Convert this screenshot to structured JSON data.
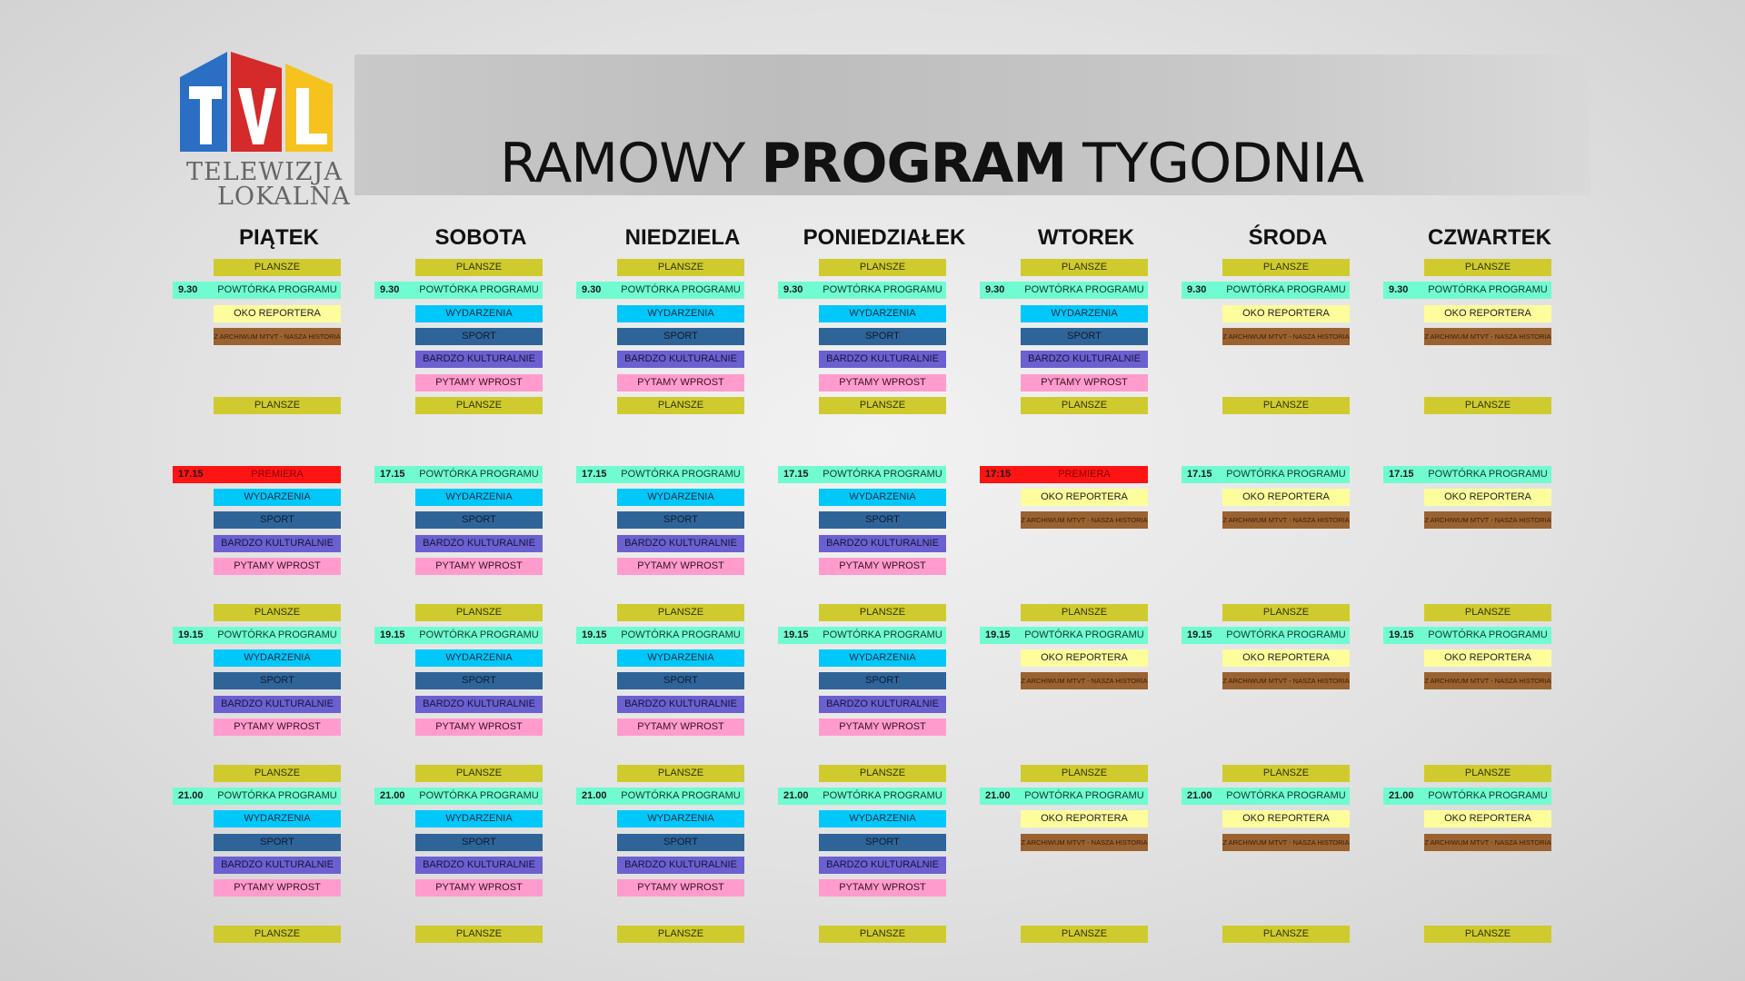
{
  "header": {
    "title_pre": "RAMOWY",
    "title_bold": "PROGRAM",
    "title_post": "TYGODNIA"
  },
  "logo": {
    "letters": "TVL",
    "line1": "TELEWIZJA",
    "line2": "LOKALNA",
    "colors": [
      "#2a6fc4",
      "#d42a2a",
      "#f6c21e"
    ]
  },
  "programs": {
    "plansze": {
      "label": "PLANSZE",
      "color": "#cfcb2e",
      "text": "#333300"
    },
    "powtorka": {
      "label": "POWTÓRKA  PROGRAMU",
      "color": "#70fbd0",
      "text": "#103a30"
    },
    "premiera": {
      "label": "PREMIERA",
      "color": "#ff1414",
      "text": "#8a0000"
    },
    "oko": {
      "label": "OKO REPORTERA",
      "color": "#fdfd9c",
      "text": "#222"
    },
    "archiwum": {
      "label": "Z ARCHIWUM MTVT - NASZA HISTORIA",
      "color": "#9a6230",
      "text": "#3a1e08",
      "small": true
    },
    "wydarzenia": {
      "label": "WYDARZENIA",
      "color": "#00c8fb",
      "text": "#0a2a40"
    },
    "sport": {
      "label": "SPORT",
      "color": "#2f6499",
      "text": "#0c1c30"
    },
    "kultura": {
      "label": "BARDZO KULTURALNIE",
      "color": "#6b60d0",
      "text": "#16143a"
    },
    "pytamy": {
      "label": "PYTAMY WPROST",
      "color": "#ff9ccd",
      "text": "#3a1020"
    }
  },
  "days": [
    {
      "name": "PIĄTEK",
      "slots": [
        {
          "p": "plansze"
        },
        {
          "t": "9.30",
          "p": "powtorka"
        },
        {
          "p": "oko"
        },
        {
          "p": "archiwum"
        },
        null,
        null,
        {
          "p": "plansze"
        },
        null,
        null,
        {
          "t": "17.15",
          "p": "premiera"
        },
        {
          "p": "wydarzenia"
        },
        {
          "p": "sport"
        },
        {
          "p": "kultura"
        },
        {
          "p": "pytamy"
        },
        null,
        {
          "p": "plansze"
        },
        {
          "t": "19.15",
          "p": "powtorka"
        },
        {
          "p": "wydarzenia"
        },
        {
          "p": "sport"
        },
        {
          "p": "kultura"
        },
        {
          "p": "pytamy"
        },
        null,
        {
          "p": "plansze"
        },
        {
          "t": "21.00",
          "p": "powtorka"
        },
        {
          "p": "wydarzenia"
        },
        {
          "p": "sport"
        },
        {
          "p": "kultura"
        },
        {
          "p": "pytamy"
        },
        null,
        {
          "p": "plansze"
        }
      ]
    },
    {
      "name": "SOBOTA",
      "slots": [
        {
          "p": "plansze"
        },
        {
          "t": "9.30",
          "p": "powtorka"
        },
        {
          "p": "wydarzenia"
        },
        {
          "p": "sport"
        },
        {
          "p": "kultura"
        },
        {
          "p": "pytamy"
        },
        {
          "p": "plansze"
        },
        null,
        null,
        {
          "t": "17.15",
          "p": "powtorka"
        },
        {
          "p": "wydarzenia"
        },
        {
          "p": "sport"
        },
        {
          "p": "kultura"
        },
        {
          "p": "pytamy"
        },
        null,
        {
          "p": "plansze"
        },
        {
          "t": "19.15",
          "p": "powtorka"
        },
        {
          "p": "wydarzenia"
        },
        {
          "p": "sport"
        },
        {
          "p": "kultura"
        },
        {
          "p": "pytamy"
        },
        null,
        {
          "p": "plansze"
        },
        {
          "t": "21.00",
          "p": "powtorka"
        },
        {
          "p": "wydarzenia"
        },
        {
          "p": "sport"
        },
        {
          "p": "kultura"
        },
        {
          "p": "pytamy"
        },
        null,
        {
          "p": "plansze"
        }
      ]
    },
    {
      "name": "NIEDZIELA",
      "slots": [
        {
          "p": "plansze"
        },
        {
          "t": "9.30",
          "p": "powtorka"
        },
        {
          "p": "wydarzenia"
        },
        {
          "p": "sport"
        },
        {
          "p": "kultura"
        },
        {
          "p": "pytamy"
        },
        {
          "p": "plansze"
        },
        null,
        null,
        {
          "t": "17.15",
          "p": "powtorka"
        },
        {
          "p": "wydarzenia"
        },
        {
          "p": "sport"
        },
        {
          "p": "kultura"
        },
        {
          "p": "pytamy"
        },
        null,
        {
          "p": "plansze"
        },
        {
          "t": "19.15",
          "p": "powtorka"
        },
        {
          "p": "wydarzenia"
        },
        {
          "p": "sport"
        },
        {
          "p": "kultura"
        },
        {
          "p": "pytamy"
        },
        null,
        {
          "p": "plansze"
        },
        {
          "t": "21.00",
          "p": "powtorka"
        },
        {
          "p": "wydarzenia"
        },
        {
          "p": "sport"
        },
        {
          "p": "kultura"
        },
        {
          "p": "pytamy"
        },
        null,
        {
          "p": "plansze"
        }
      ]
    },
    {
      "name": "PONIEDZIAŁEK",
      "slots": [
        {
          "p": "plansze"
        },
        {
          "t": "9.30",
          "p": "powtorka"
        },
        {
          "p": "wydarzenia"
        },
        {
          "p": "sport"
        },
        {
          "p": "kultura"
        },
        {
          "p": "pytamy"
        },
        {
          "p": "plansze"
        },
        null,
        null,
        {
          "t": "17.15",
          "p": "powtorka"
        },
        {
          "p": "wydarzenia"
        },
        {
          "p": "sport"
        },
        {
          "p": "kultura"
        },
        {
          "p": "pytamy"
        },
        null,
        {
          "p": "plansze"
        },
        {
          "t": "19.15",
          "p": "powtorka"
        },
        {
          "p": "wydarzenia"
        },
        {
          "p": "sport"
        },
        {
          "p": "kultura"
        },
        {
          "p": "pytamy"
        },
        null,
        {
          "p": "plansze"
        },
        {
          "t": "21.00",
          "p": "powtorka"
        },
        {
          "p": "wydarzenia"
        },
        {
          "p": "sport"
        },
        {
          "p": "kultura"
        },
        {
          "p": "pytamy"
        },
        null,
        {
          "p": "plansze"
        }
      ]
    },
    {
      "name": "WTOREK",
      "slots": [
        {
          "p": "plansze"
        },
        {
          "t": "9.30",
          "p": "powtorka"
        },
        {
          "p": "wydarzenia"
        },
        {
          "p": "sport"
        },
        {
          "p": "kultura"
        },
        {
          "p": "pytamy"
        },
        {
          "p": "plansze"
        },
        null,
        null,
        {
          "t": "17:15",
          "p": "premiera"
        },
        {
          "p": "oko"
        },
        {
          "p": "archiwum"
        },
        null,
        null,
        null,
        {
          "p": "plansze"
        },
        {
          "t": "19.15",
          "p": "powtorka"
        },
        {
          "p": "oko"
        },
        {
          "p": "archiwum"
        },
        null,
        null,
        null,
        {
          "p": "plansze"
        },
        {
          "t": "21.00",
          "p": "powtorka"
        },
        {
          "p": "oko"
        },
        {
          "p": "archiwum"
        },
        null,
        null,
        null,
        {
          "p": "plansze"
        }
      ]
    },
    {
      "name": "ŚRODA",
      "slots": [
        {
          "p": "plansze"
        },
        {
          "t": "9.30",
          "p": "powtorka"
        },
        {
          "p": "oko"
        },
        {
          "p": "archiwum"
        },
        null,
        null,
        {
          "p": "plansze"
        },
        null,
        null,
        {
          "t": "17.15",
          "p": "powtorka"
        },
        {
          "p": "oko"
        },
        {
          "p": "archiwum"
        },
        null,
        null,
        null,
        {
          "p": "plansze"
        },
        {
          "t": "19.15",
          "p": "powtorka"
        },
        {
          "p": "oko"
        },
        {
          "p": "archiwum"
        },
        null,
        null,
        null,
        {
          "p": "plansze"
        },
        {
          "t": "21.00",
          "p": "powtorka"
        },
        {
          "p": "oko"
        },
        {
          "p": "archiwum"
        },
        null,
        null,
        null,
        {
          "p": "plansze"
        }
      ]
    },
    {
      "name": "CZWARTEK",
      "slots": [
        {
          "p": "plansze"
        },
        {
          "t": "9.30",
          "p": "powtorka"
        },
        {
          "p": "oko"
        },
        {
          "p": "archiwum"
        },
        null,
        null,
        {
          "p": "plansze"
        },
        null,
        null,
        {
          "t": "17.15",
          "p": "powtorka"
        },
        {
          "p": "oko"
        },
        {
          "p": "archiwum"
        },
        null,
        null,
        null,
        {
          "p": "plansze"
        },
        {
          "t": "19.15",
          "p": "powtorka"
        },
        {
          "p": "oko"
        },
        {
          "p": "archiwum"
        },
        null,
        null,
        null,
        {
          "p": "plansze"
        },
        {
          "t": "21.00",
          "p": "powtorka"
        },
        {
          "p": "oko"
        },
        {
          "p": "archiwum"
        },
        null,
        null,
        null,
        {
          "p": "plansze"
        }
      ]
    }
  ]
}
